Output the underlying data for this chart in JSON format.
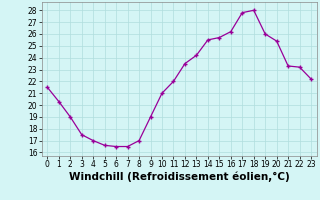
{
  "x": [
    0,
    1,
    2,
    3,
    4,
    5,
    6,
    7,
    8,
    9,
    10,
    11,
    12,
    13,
    14,
    15,
    16,
    17,
    18,
    19,
    20,
    21,
    22,
    23
  ],
  "y": [
    21.5,
    20.3,
    19.0,
    17.5,
    17.0,
    16.6,
    16.5,
    16.5,
    17.0,
    19.0,
    21.0,
    22.0,
    23.5,
    24.2,
    25.5,
    25.7,
    26.2,
    27.8,
    28.0,
    26.0,
    25.4,
    23.3,
    23.2,
    22.2
  ],
  "line_color": "#990099",
  "marker": "+",
  "background_color": "#d4f5f5",
  "grid_color": "#b0dede",
  "xlabel": "Windchill (Refroidissement éolien,°C)",
  "ylim": [
    15.7,
    28.7
  ],
  "yticks": [
    16,
    17,
    18,
    19,
    20,
    21,
    22,
    23,
    24,
    25,
    26,
    27,
    28
  ],
  "xticks": [
    0,
    1,
    2,
    3,
    4,
    5,
    6,
    7,
    8,
    9,
    10,
    11,
    12,
    13,
    14,
    15,
    16,
    17,
    18,
    19,
    20,
    21,
    22,
    23
  ],
  "tick_label_fontsize": 5.5,
  "xlabel_fontsize": 7.5
}
